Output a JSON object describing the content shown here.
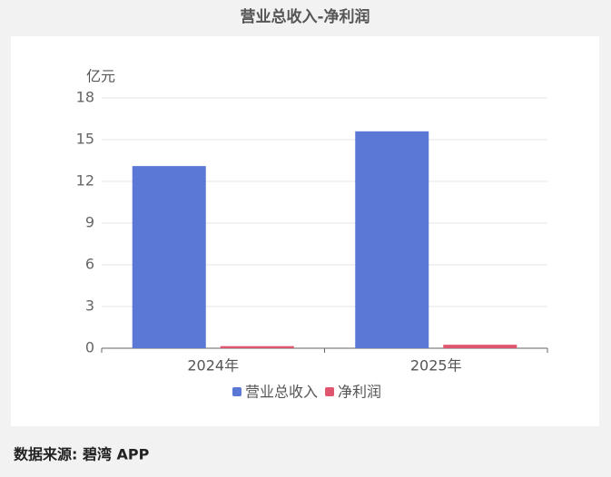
{
  "chart_data": {
    "type": "bar",
    "title": "营业总收入-净利润",
    "y_label": "亿元",
    "categories": [
      "2024年",
      "2025年"
    ],
    "series": [
      {
        "name": "营业总收入",
        "color": "#5b78d6",
        "values": [
          13.1,
          15.6
        ]
      },
      {
        "name": "净利润",
        "color": "#e0556e",
        "values": [
          0.15,
          0.25
        ]
      }
    ],
    "ylim": [
      0,
      18
    ],
    "yticks": [
      0,
      3,
      6,
      9,
      12,
      15,
      18
    ],
    "grid": true,
    "legend": "bottom",
    "source": "数据来源: 碧湾 APP"
  }
}
